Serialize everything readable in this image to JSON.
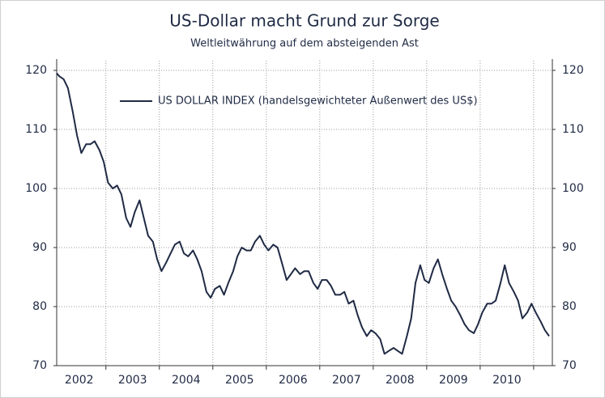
{
  "chart_data": {
    "type": "line",
    "title": "US-Dollar macht Grund zur Sorge",
    "subtitle": "Weltleitwährung auf dem absteigenden Ast",
    "x": [
      2002.08,
      2002.13,
      2002.21,
      2002.29,
      2002.38,
      2002.46,
      2002.54,
      2002.63,
      2002.71,
      2002.79,
      2002.88,
      2002.96,
      2003.04,
      2003.13,
      2003.21,
      2003.29,
      2003.38,
      2003.46,
      2003.54,
      2003.63,
      2003.71,
      2003.79,
      2003.88,
      2003.96,
      2004.04,
      2004.13,
      2004.21,
      2004.29,
      2004.38,
      2004.46,
      2004.54,
      2004.63,
      2004.71,
      2004.79,
      2004.88,
      2004.96,
      2005.04,
      2005.13,
      2005.21,
      2005.29,
      2005.38,
      2005.46,
      2005.54,
      2005.63,
      2005.71,
      2005.79,
      2005.88,
      2005.96,
      2006.04,
      2006.13,
      2006.21,
      2006.29,
      2006.38,
      2006.46,
      2006.54,
      2006.63,
      2006.71,
      2006.79,
      2006.88,
      2006.96,
      2007.04,
      2007.13,
      2007.21,
      2007.29,
      2007.38,
      2007.46,
      2007.54,
      2007.63,
      2007.71,
      2007.79,
      2007.88,
      2007.96,
      2008.04,
      2008.13,
      2008.21,
      2008.29,
      2008.38,
      2008.46,
      2008.54,
      2008.63,
      2008.71,
      2008.79,
      2008.88,
      2008.96,
      2009.04,
      2009.13,
      2009.21,
      2009.29,
      2009.38,
      2009.46,
      2009.54,
      2009.63,
      2009.71,
      2009.79,
      2009.88,
      2009.96,
      2010.04,
      2010.13,
      2010.21,
      2010.29,
      2010.38,
      2010.46,
      2010.54,
      2010.63,
      2010.71,
      2010.79,
      2010.88,
      2010.96,
      2011.04,
      2011.13,
      2011.21,
      2011.29
    ],
    "series": [
      {
        "name": "US DOLLAR INDEX (handelsgewichteter Außenwert des US$)",
        "color": "#1f2a44",
        "values": [
          119.5,
          119,
          118.5,
          117,
          113,
          109,
          106,
          107.5,
          107.5,
          108,
          106.5,
          104.5,
          101,
          100,
          100.5,
          99,
          95,
          93.5,
          96,
          98,
          95,
          92,
          91,
          88,
          86,
          87.5,
          89,
          90.5,
          91,
          89,
          88.5,
          89.5,
          88,
          86,
          82.5,
          81.5,
          83,
          83.5,
          82,
          84,
          86,
          88.5,
          90,
          89.5,
          89.5,
          91,
          92,
          90.5,
          89.5,
          90.5,
          90,
          87.5,
          84.5,
          85.5,
          86.5,
          85.5,
          86,
          86,
          84,
          83,
          84.5,
          84.5,
          83.5,
          82,
          82,
          82.5,
          80.5,
          81,
          78.5,
          76.5,
          75,
          76,
          75.5,
          74.5,
          72,
          72.5,
          73,
          72.5,
          72,
          75,
          78,
          84,
          87,
          84.5,
          84,
          86.5,
          88,
          85.5,
          83,
          81,
          80,
          78.5,
          77,
          76,
          75.5,
          77,
          79,
          80.5,
          80.5,
          81,
          84,
          87,
          84,
          82.5,
          81,
          78,
          79,
          80.5,
          79,
          77.5,
          76,
          75
        ]
      }
    ],
    "xlim": [
      2002.08,
      2011.35
    ],
    "xticks": [
      {
        "value": 2002.5,
        "label": "2002"
      },
      {
        "value": 2003.5,
        "label": "2003"
      },
      {
        "value": 2004.5,
        "label": "2004"
      },
      {
        "value": 2005.5,
        "label": "2005"
      },
      {
        "value": 2006.5,
        "label": "2006"
      },
      {
        "value": 2007.5,
        "label": "2007"
      },
      {
        "value": 2008.5,
        "label": "2008"
      },
      {
        "value": 2009.5,
        "label": "2009"
      },
      {
        "value": 2010.5,
        "label": "2010"
      }
    ],
    "x_grid": [
      2003,
      2004,
      2005,
      2006,
      2007,
      2008,
      2009,
      2010,
      2011
    ],
    "ylim": [
      70,
      120
    ],
    "yticks": [
      70,
      80,
      90,
      100,
      110,
      120
    ],
    "y2lim": [
      70,
      120
    ],
    "y2ticks": [
      70,
      80,
      90,
      100,
      110,
      120
    ],
    "grid": true,
    "legend": "upper left"
  }
}
